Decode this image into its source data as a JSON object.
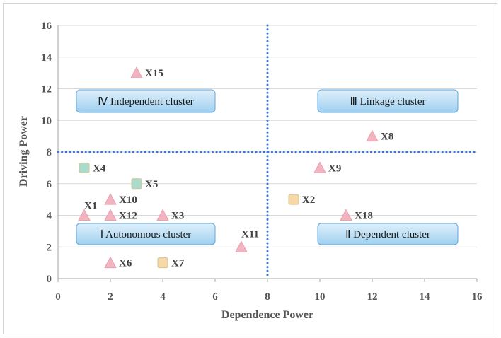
{
  "chart_data": {
    "type": "scatter",
    "xlabel": "Dependence Power",
    "ylabel": "Driving Power",
    "xlim": [
      0,
      16
    ],
    "ylim": [
      0,
      16
    ],
    "xticks": [
      0,
      2,
      4,
      6,
      8,
      10,
      12,
      14,
      16
    ],
    "yticks": [
      0,
      2,
      4,
      6,
      8,
      10,
      12,
      14,
      16
    ],
    "grid": "horizontal-only",
    "divider_lines": {
      "x": 8,
      "y": 8,
      "style": "dotted",
      "color": "#3a78d6"
    },
    "points": [
      {
        "label": "X1",
        "x": 1,
        "y": 4,
        "marker": "triangle",
        "color": "#f2b4c0"
      },
      {
        "label": "X2",
        "x": 9,
        "y": 5,
        "marker": "square",
        "color": "#f7d9a8"
      },
      {
        "label": "X3",
        "x": 4,
        "y": 4,
        "marker": "triangle",
        "color": "#f2b4c0"
      },
      {
        "label": "X4",
        "x": 1,
        "y": 7,
        "marker": "square",
        "color": "#a9dccd"
      },
      {
        "label": "X5",
        "x": 3,
        "y": 6,
        "marker": "square",
        "color": "#a9dccd"
      },
      {
        "label": "X6",
        "x": 2,
        "y": 1,
        "marker": "triangle",
        "color": "#f2b4c0"
      },
      {
        "label": "X7",
        "x": 4,
        "y": 1,
        "marker": "square",
        "color": "#f7d9a8"
      },
      {
        "label": "X8",
        "x": 12,
        "y": 9,
        "marker": "triangle",
        "color": "#f2b4c0"
      },
      {
        "label": "X9",
        "x": 10,
        "y": 7,
        "marker": "triangle",
        "color": "#f2b4c0"
      },
      {
        "label": "X10",
        "x": 2,
        "y": 5,
        "marker": "triangle",
        "color": "#f2b4c0"
      },
      {
        "label": "X11",
        "x": 7,
        "y": 2,
        "marker": "triangle",
        "color": "#f2b4c0"
      },
      {
        "label": "X12",
        "x": 2,
        "y": 4,
        "marker": "triangle",
        "color": "#f2b4c0"
      },
      {
        "label": "X15",
        "x": 3,
        "y": 13,
        "marker": "triangle",
        "color": "#f2b4c0"
      },
      {
        "label": "X18",
        "x": 11,
        "y": 4,
        "marker": "triangle",
        "color": "#f2b4c0"
      }
    ],
    "clusters": [
      {
        "label": "Ⅳ  Independent cluster",
        "quadrant": "top-left"
      },
      {
        "label": "Ⅲ  Linkage cluster",
        "quadrant": "top-right"
      },
      {
        "label": "Ⅰ  Autonomous cluster",
        "quadrant": "bottom-left"
      },
      {
        "label": "Ⅱ  Dependent cluster",
        "quadrant": "bottom-right"
      }
    ]
  }
}
